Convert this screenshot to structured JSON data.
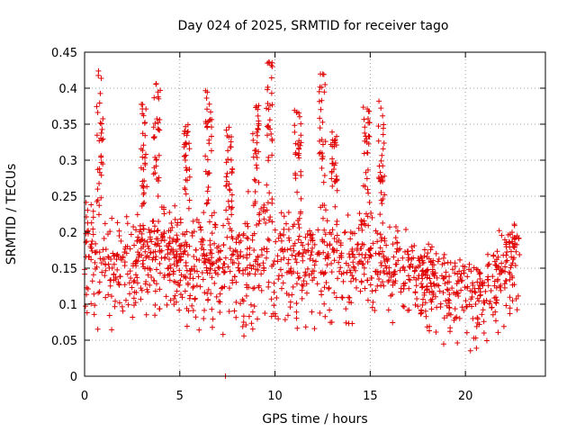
{
  "chart_data": {
    "type": "scatter",
    "title": "Day 024 of 2025, SRMTID for receiver tago",
    "xlabel": "GPS time / hours",
    "ylabel": "SRMTID / TECUs",
    "xlim": [
      0,
      24.2
    ],
    "ylim": [
      0,
      0.45
    ],
    "xticks": [
      0,
      5,
      10,
      15,
      20
    ],
    "yticks": [
      0,
      0.05,
      0.1,
      0.15,
      0.2,
      0.25,
      0.3,
      0.35,
      0.4,
      0.45
    ],
    "xtick_labels": [
      "0",
      "5",
      "10",
      "15",
      "20"
    ],
    "ytick_labels": [
      "0",
      "0.05",
      "0.1",
      "0.15",
      "0.2",
      "0.25",
      "0.3",
      "0.35",
      "0.4",
      "0.45"
    ],
    "grid": true,
    "marker": "+",
    "color": "#e00000",
    "time_range": [
      0.0,
      22.85
    ],
    "baseline_envelope": {
      "x": [
        0.0,
        1.0,
        2.0,
        3.0,
        4.0,
        5.0,
        6.0,
        7.0,
        8.0,
        9.0,
        10.0,
        11.0,
        12.0,
        13.0,
        14.0,
        15.0,
        16.0,
        17.0,
        18.0,
        19.0,
        20.0,
        21.0,
        22.0,
        22.85
      ],
      "low": [
        0.1,
        0.1,
        0.11,
        0.12,
        0.13,
        0.12,
        0.11,
        0.11,
        0.1,
        0.11,
        0.11,
        0.11,
        0.11,
        0.12,
        0.12,
        0.12,
        0.12,
        0.11,
        0.1,
        0.09,
        0.08,
        0.08,
        0.1,
        0.12
      ],
      "high": [
        0.26,
        0.22,
        0.2,
        0.22,
        0.24,
        0.22,
        0.21,
        0.22,
        0.22,
        0.24,
        0.24,
        0.21,
        0.21,
        0.22,
        0.22,
        0.21,
        0.21,
        0.19,
        0.18,
        0.17,
        0.16,
        0.16,
        0.19,
        0.22
      ]
    },
    "bursts": [
      {
        "t": 0.8,
        "peak": 0.43
      },
      {
        "t": 3.1,
        "peak": 0.38
      },
      {
        "t": 3.8,
        "peak": 0.42
      },
      {
        "t": 5.4,
        "peak": 0.35
      },
      {
        "t": 6.5,
        "peak": 0.4
      },
      {
        "t": 7.6,
        "peak": 0.35
      },
      {
        "t": 9.0,
        "peak": 0.39
      },
      {
        "t": 9.7,
        "peak": 0.44
      },
      {
        "t": 11.2,
        "peak": 0.37
      },
      {
        "t": 12.5,
        "peak": 0.42
      },
      {
        "t": 13.1,
        "peak": 0.34
      },
      {
        "t": 14.8,
        "peak": 0.38
      },
      {
        "t": 15.6,
        "peak": 0.39
      }
    ],
    "point_count": 1400,
    "outliers": [
      {
        "x": 7.4,
        "y": 0.0
      }
    ]
  }
}
